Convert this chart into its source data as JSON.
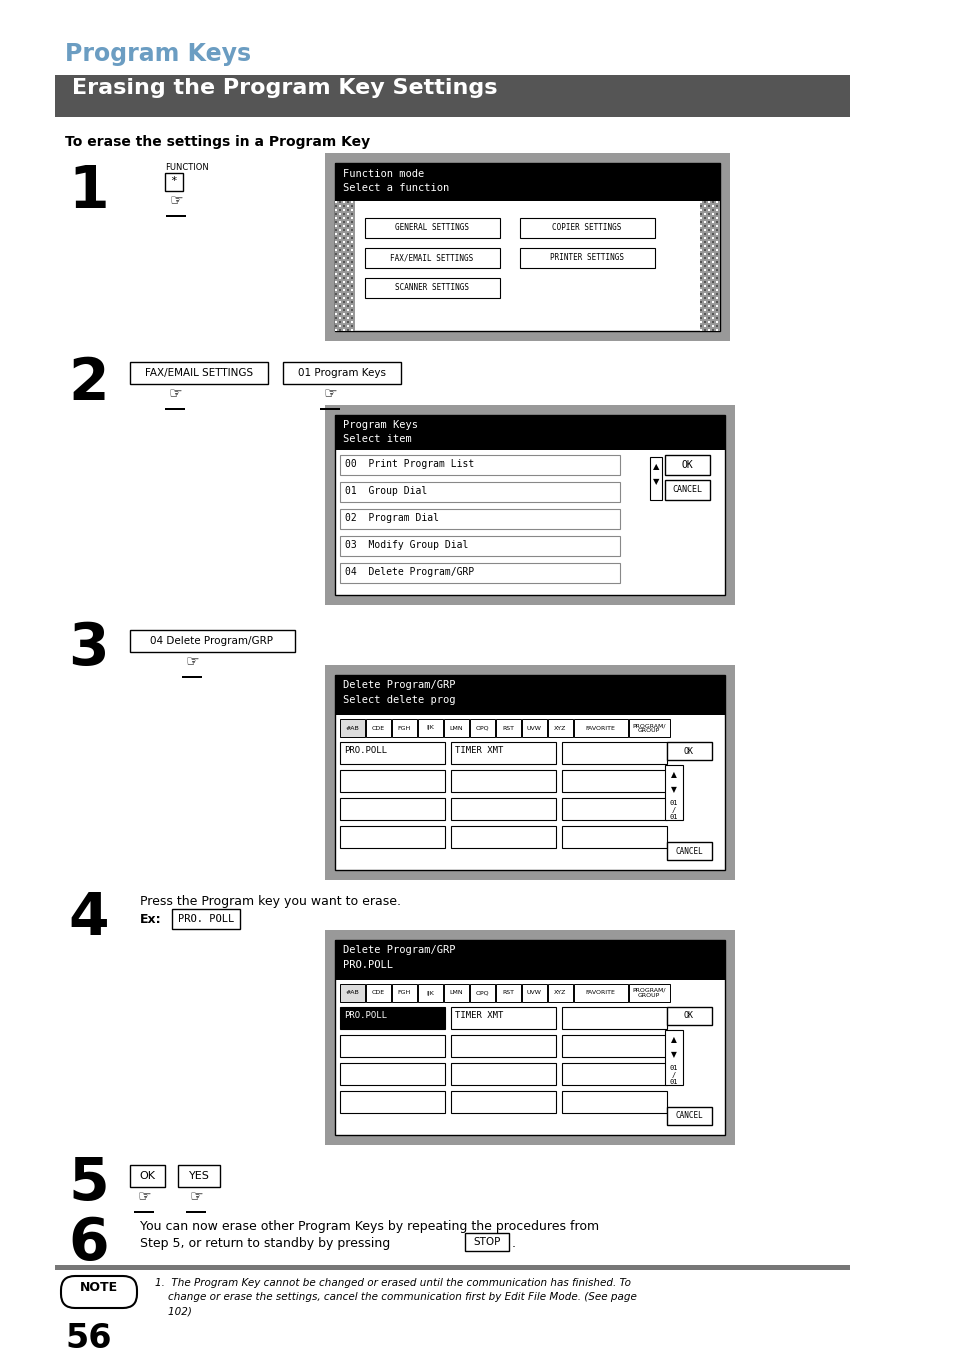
{
  "title": "Program Keys",
  "subtitle": "Erasing the Program Key Settings",
  "instruction": "To erase the settings in a Program Key",
  "bg_color": "#ffffff",
  "title_color": "#6b9dc2",
  "subtitle_bg": "#555555",
  "subtitle_fg": "#ffffff",
  "page_number": "56",
  "tabs": [
    "#AB",
    "CDE",
    "FGH",
    "IJK",
    "LMN",
    "OPQ",
    "RST",
    "UVW",
    "XYZ",
    "FAVORITE",
    "PROGRAM/\nGROUP"
  ]
}
